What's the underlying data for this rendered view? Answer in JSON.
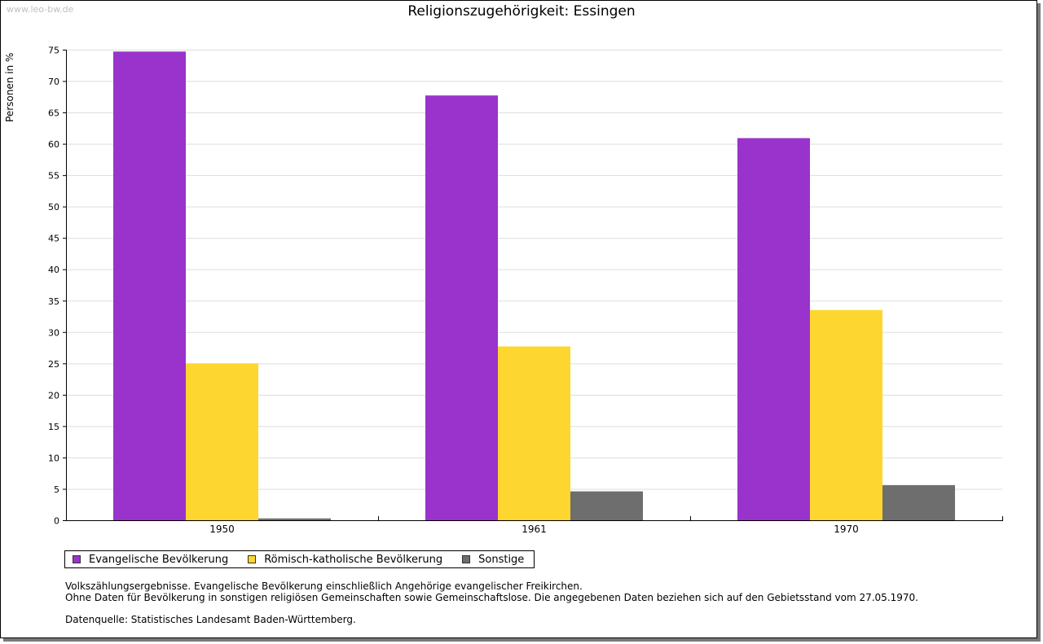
{
  "watermark": "www.leo-bw.de",
  "chart_data": {
    "type": "bar",
    "title": "Religionszugehörigkeit: Essingen",
    "xlabel": "",
    "ylabel": "Personen in %",
    "ylim": [
      0,
      75
    ],
    "yticks": [
      0,
      5,
      10,
      15,
      20,
      25,
      30,
      35,
      40,
      45,
      50,
      55,
      60,
      65,
      70,
      75
    ],
    "grid": true,
    "legend_position": "bottom-left",
    "categories": [
      "1950",
      "1961",
      "1970"
    ],
    "series": [
      {
        "name": "Evangelische Bevölkerung",
        "color": "#9933cc",
        "values": [
          74.7,
          67.7,
          60.9
        ]
      },
      {
        "name": "Römisch-katholische Bevölkerung",
        "color": "#fdd630",
        "values": [
          25.0,
          27.7,
          33.5
        ]
      },
      {
        "name": "Sonstige",
        "color": "#6e6e6e",
        "values": [
          0.3,
          4.6,
          5.6
        ]
      }
    ]
  },
  "notes": {
    "line1": "Volkszählungsergebnisse. Evangelische Bevölkerung einschließlich Angehörige evangelischer Freikirchen.",
    "line2": "Ohne Daten für Bevölkerung in sonstigen religiösen Gemeinschaften sowie Gemeinschaftslose. Die angegebenen Daten beziehen sich auf den Gebietsstand vom 27.05.1970.",
    "source": "Datenquelle: Statistisches Landesamt Baden-Württemberg."
  }
}
